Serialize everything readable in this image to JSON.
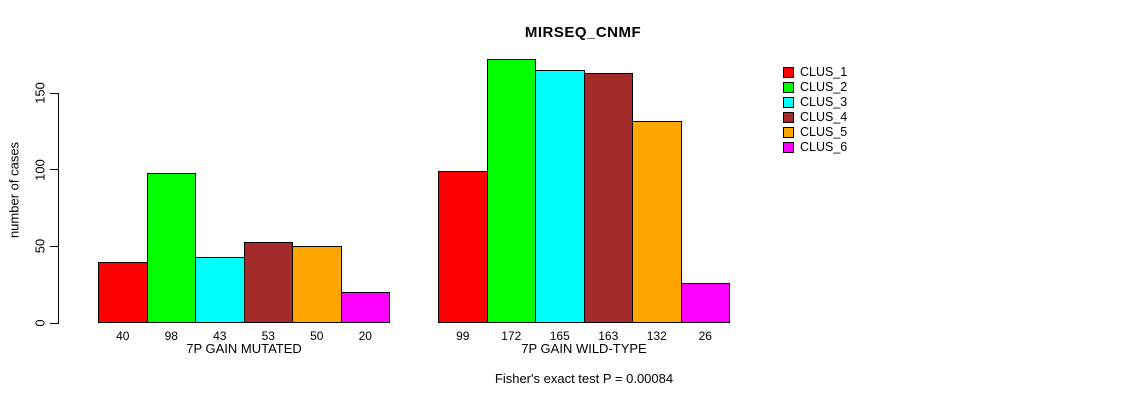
{
  "chart_data": {
    "type": "bar",
    "title": "MIRSEQ_CNMF",
    "ylabel": "number of cases",
    "xlabel": "",
    "ylim": [
      0,
      150
    ],
    "yticks": [
      0,
      50,
      100,
      150
    ],
    "grid": false,
    "legend_position": "right",
    "bar_value_labels_shown": true,
    "categories": [
      "7P GAIN MUTATED",
      "7P GAIN WILD-TYPE"
    ],
    "series": [
      {
        "name": "CLUS_1",
        "color": "#ff0000",
        "values": [
          40,
          99
        ]
      },
      {
        "name": "CLUS_2",
        "color": "#00ff00",
        "values": [
          98,
          172
        ]
      },
      {
        "name": "CLUS_3",
        "color": "#00ffff",
        "values": [
          43,
          165
        ]
      },
      {
        "name": "CLUS_4",
        "color": "#a52a2a",
        "values": [
          53,
          163
        ]
      },
      {
        "name": "CLUS_5",
        "color": "#ffa500",
        "values": [
          50,
          132
        ]
      },
      {
        "name": "CLUS_6",
        "color": "#ff00ff",
        "values": [
          20,
          26
        ]
      }
    ],
    "groups": [
      {
        "label": "7P GAIN MUTATED",
        "values": [
          40,
          98,
          43,
          53,
          50,
          20
        ]
      },
      {
        "label": "7P GAIN WILD-TYPE",
        "values": [
          99,
          172,
          165,
          163,
          132,
          26
        ]
      }
    ],
    "footnote": "Fisher's exact test P = 0.00084",
    "axis_color": "#000000",
    "background_color": "#ffffff"
  }
}
